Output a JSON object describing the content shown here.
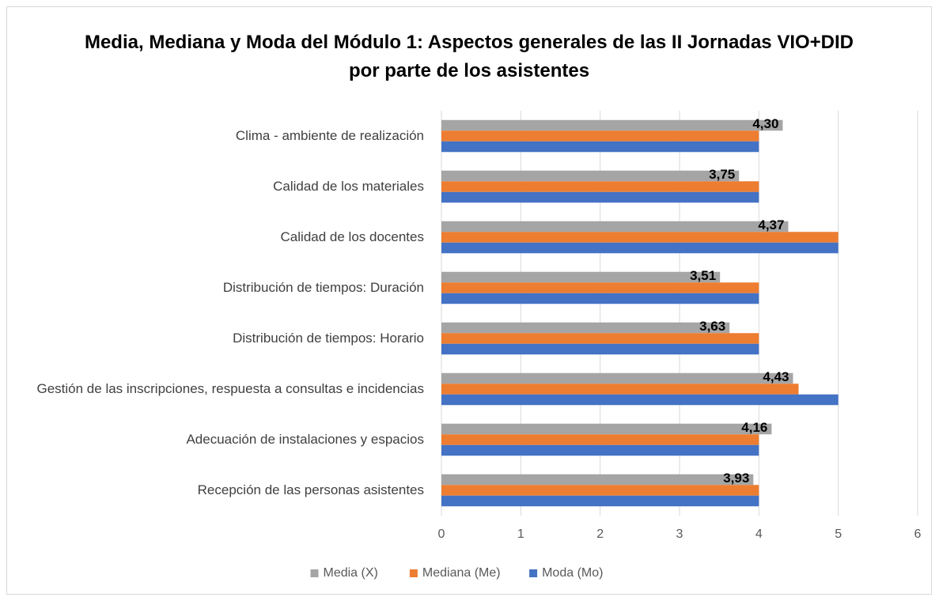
{
  "chart_data": {
    "type": "hbar",
    "title": "Media, Mediana y Moda del Módulo 1: Aspectos generales de las II Jornadas VIO+DID por parte de los asistentes",
    "categories": [
      "Clima - ambiente de realización",
      "Calidad de los materiales",
      "Calidad de los docentes",
      "Distribución de tiempos: Duración",
      "Distribución de tiempos: Horario",
      "Gestión de las inscripciones, respuesta a consultas e incidencias",
      "Adecuación de instalaciones y espacios",
      "Recepción de las personas asistentes"
    ],
    "series": [
      {
        "name": "Media (X)",
        "color": "#a5a5a5",
        "values": [
          4.3,
          3.75,
          4.37,
          3.51,
          3.63,
          4.43,
          4.16,
          3.93
        ],
        "value_labels": [
          "4,30",
          "3,75",
          "4,37",
          "3,51",
          "3,63",
          "4,43",
          "4,16",
          "3,93"
        ]
      },
      {
        "name": "Mediana (Me)",
        "color": "#ed7d31",
        "values": [
          4,
          4,
          5,
          4,
          4,
          4.5,
          4,
          4
        ]
      },
      {
        "name": "Moda (Mo)",
        "color": "#4472c4",
        "values": [
          4,
          4,
          5,
          4,
          4,
          5,
          4,
          4
        ]
      }
    ],
    "xlim": [
      0,
      6
    ],
    "xticks": [
      0,
      1,
      2,
      3,
      4,
      5,
      6
    ],
    "grid": true,
    "legend": "bottom"
  }
}
